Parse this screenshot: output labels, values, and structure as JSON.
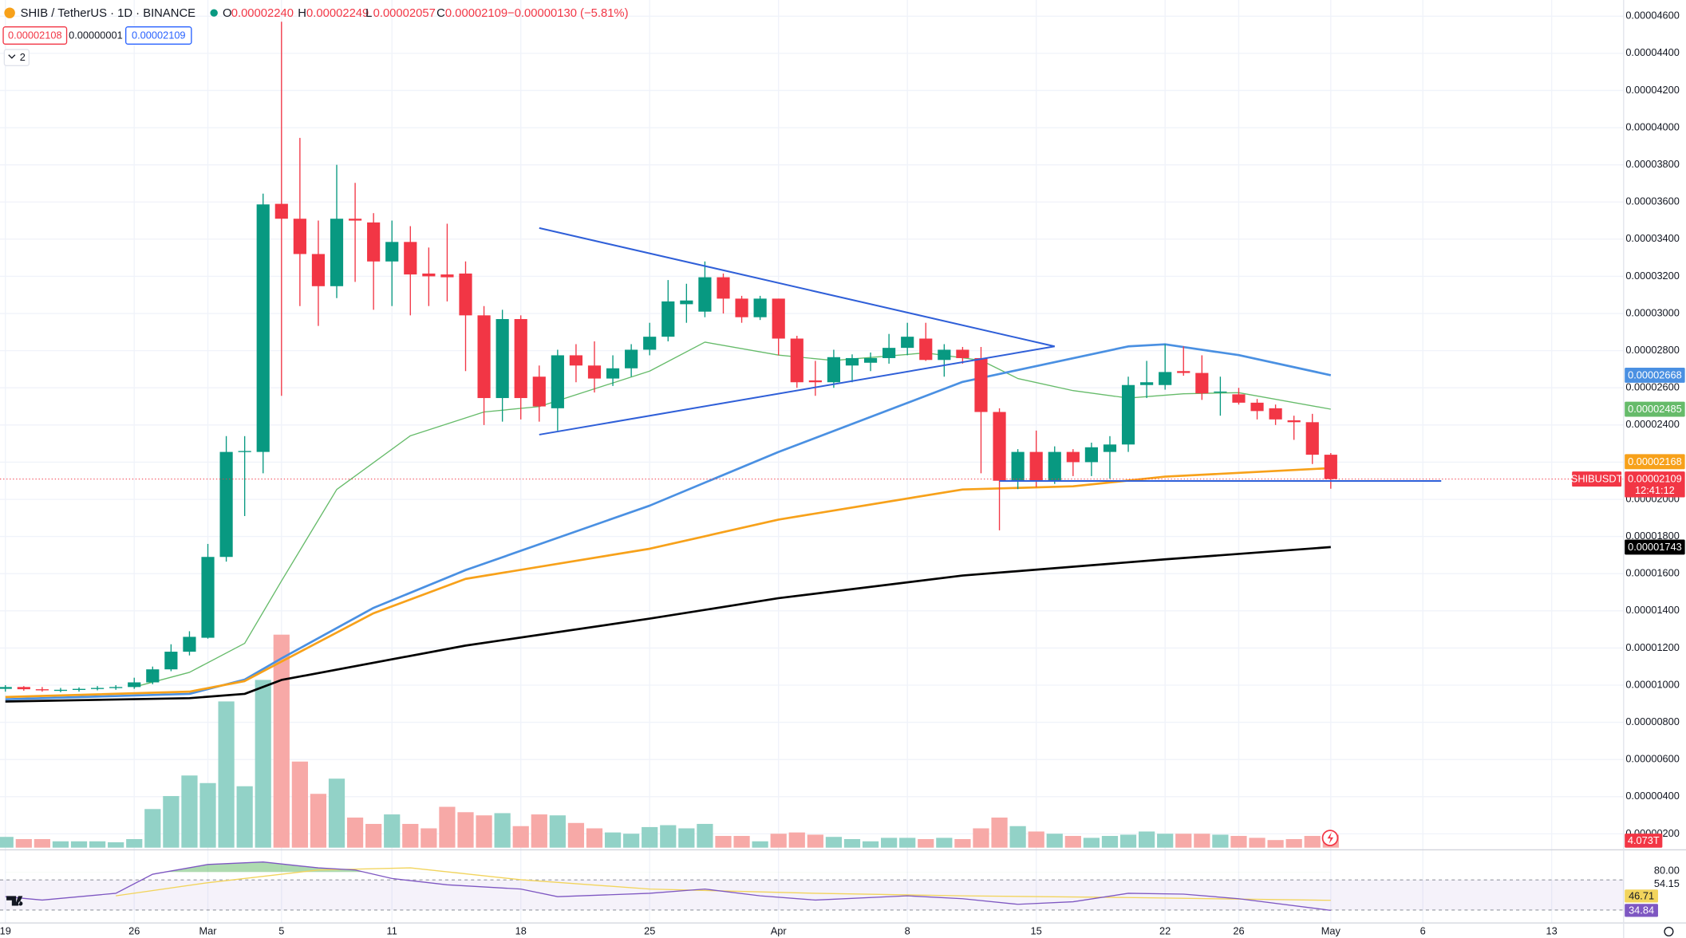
{
  "chart_data": {
    "type": "candlestick",
    "title": "SHIB / TetherUS · 1D · BINANCE",
    "ohlc": [
      {
        "label": "O",
        "value": "0.00002240"
      },
      {
        "label": "H",
        "value": "0.00002249"
      },
      {
        "label": "L",
        "value": "0.00002057"
      },
      {
        "label": "C",
        "value": "0.00002109"
      }
    ],
    "change": "−0.00000130 (−5.81%)",
    "sell_price": "0.00002108",
    "spread": "0.00000001",
    "buy_price": "0.00002109",
    "indicator_count": "2",
    "symbol": "SHIBUSDT",
    "countdown": "12:41:12",
    "colors": {
      "up": "#089981",
      "down": "#f23645",
      "up_volume": "#92d2c7",
      "down_volume": "#f7a9a7"
    },
    "x": [
      "Feb 19",
      "Feb 20",
      "Feb 21",
      "Feb 22",
      "Feb 23",
      "Feb 24",
      "Feb 25",
      "Feb 26",
      "Feb 27",
      "Feb 28",
      "Feb 29",
      "Mar 1",
      "Mar 2",
      "Mar 3",
      "Mar 4",
      "Mar 5",
      "Mar 6",
      "Mar 7",
      "Mar 8",
      "Mar 9",
      "Mar 10",
      "Mar 11",
      "Mar 12",
      "Mar 13",
      "Mar 14",
      "Mar 15",
      "Mar 16",
      "Mar 17",
      "Mar 18",
      "Mar 19",
      "Mar 20",
      "Mar 21",
      "Mar 22",
      "Mar 23",
      "Mar 24",
      "Mar 25",
      "Mar 26",
      "Mar 27",
      "Mar 28",
      "Mar 29",
      "Mar 30",
      "Mar 31",
      "Apr 1",
      "Apr 2",
      "Apr 3",
      "Apr 4",
      "Apr 5",
      "Apr 6",
      "Apr 7",
      "Apr 8",
      "Apr 9",
      "Apr 10",
      "Apr 11",
      "Apr 12",
      "Apr 13",
      "Apr 14",
      "Apr 15",
      "Apr 16",
      "Apr 17",
      "Apr 18",
      "Apr 19",
      "Apr 20",
      "Apr 21",
      "Apr 22",
      "Apr 23",
      "Apr 24",
      "Apr 25",
      "Apr 26",
      "Apr 27",
      "Apr 28",
      "Apr 29",
      "Apr 30",
      "May 1"
    ],
    "open": [
      9.8e-06,
      9.9e-06,
      9.78e-06,
      9.72e-06,
      9.75e-06,
      9.8e-06,
      9.85e-06,
      9.9e-06,
      1.015e-05,
      1.085e-05,
      1.18e-05,
      1.255e-05,
      1.69e-05,
      2.255e-05,
      2.255e-05,
      3.59e-05,
      3.51e-05,
      3.32e-05,
      3.147e-05,
      3.51e-05,
      3.49e-05,
      3.28e-05,
      3.385e-05,
      3.215e-05,
      3.21e-05,
      3.215e-05,
      2.99e-05,
      2.545e-05,
      2.97e-05,
      2.66e-05,
      2.49e-05,
      2.775e-05,
      2.72e-05,
      2.65e-05,
      2.705e-05,
      2.805e-05,
      2.875e-05,
      3.05e-05,
      3.01e-05,
      3.195e-05,
      3.08e-05,
      2.98e-05,
      3.08e-05,
      2.865e-05,
      2.64e-05,
      2.63e-05,
      2.72e-05,
      2.735e-05,
      2.76e-05,
      2.815e-05,
      2.865e-05,
      2.75e-05,
      2.805e-05,
      2.76e-05,
      2.47e-05,
      2.1e-05,
      2.255e-05,
      2.1e-05,
      2.255e-05,
      2.2e-05,
      2.255e-05,
      2.295e-05,
      2.615e-05,
      2.615e-05,
      2.69e-05,
      2.68e-05,
      2.575e-05,
      2.565e-05,
      2.52e-05,
      2.49e-05,
      2.425e-05,
      2.415e-05,
      2.24e-05
    ],
    "high": [
      1e-05,
      9.95e-06,
      9.9e-06,
      9.85e-06,
      9.88e-06,
      9.95e-06,
      1e-05,
      1.04e-05,
      1.1e-05,
      1.22e-05,
      1.29e-05,
      1.76e-05,
      2.34e-05,
      2.34e-05,
      3.645e-05,
      4.57e-05,
      3.945e-05,
      3.5e-05,
      3.8e-05,
      3.703e-05,
      3.54e-05,
      3.5e-05,
      3.47e-05,
      3.355e-05,
      3.483e-05,
      3.28e-05,
      3.04e-05,
      3.02e-05,
      2.99e-05,
      2.72e-05,
      2.805e-05,
      2.835e-05,
      2.85e-05,
      2.775e-05,
      2.835e-05,
      2.95e-05,
      3.18e-05,
      3.16e-05,
      3.28e-05,
      3.215e-05,
      3.095e-05,
      3.095e-05,
      3.08e-05,
      2.88e-05,
      2.745e-05,
      2.805e-05,
      2.78e-05,
      2.79e-05,
      2.89e-05,
      2.95e-05,
      2.95e-05,
      2.835e-05,
      2.82e-05,
      2.82e-05,
      2.49e-05,
      2.27e-05,
      2.37e-05,
      2.285e-05,
      2.27e-05,
      2.305e-05,
      2.34e-05,
      2.66e-05,
      2.745e-05,
      2.835e-05,
      2.823e-05,
      2.775e-05,
      2.66e-05,
      2.6e-05,
      2.54e-05,
      2.51e-05,
      2.45e-05,
      2.46e-05,
      2.249e-05
    ],
    "low": [
      9.65e-06,
      9.7e-06,
      9.65e-06,
      9.62e-06,
      9.65e-06,
      9.72e-06,
      9.75e-06,
      9.8e-06,
      1.005e-05,
      1.075e-05,
      1.16e-05,
      1.25e-05,
      1.665e-05,
      1.91e-05,
      2.14e-05,
      2.557e-05,
      3.04e-05,
      2.933e-05,
      3.083e-05,
      3.17e-05,
      3.02e-05,
      3.04e-05,
      2.99e-05,
      3.04e-05,
      3.065e-05,
      2.69e-05,
      2.4e-05,
      2.418e-05,
      2.43e-05,
      2.418e-05,
      2.37e-05,
      2.63e-05,
      2.575e-05,
      2.61e-05,
      2.66e-05,
      2.775e-05,
      2.85e-05,
      2.95e-05,
      2.98e-05,
      3e-05,
      2.95e-05,
      2.965e-05,
      2.775e-05,
      2.6e-05,
      2.557e-05,
      2.6e-05,
      2.63e-05,
      2.69e-05,
      2.73e-05,
      2.775e-05,
      2.745e-05,
      2.66e-05,
      2.73e-05,
      2.14e-05,
      1.833e-05,
      2.055e-05,
      2.065e-05,
      2.083e-05,
      2.125e-05,
      2.125e-05,
      2.112e-05,
      2.255e-05,
      2.545e-05,
      2.59e-05,
      2.665e-05,
      2.535e-05,
      2.45e-05,
      2.51e-05,
      2.43e-05,
      2.4e-05,
      2.32e-05,
      2.19e-05,
      2.057e-05
    ],
    "close": [
      9.9e-06,
      9.78e-06,
      9.72e-06,
      9.75e-06,
      9.8e-06,
      9.85e-06,
      9.9e-06,
      1.015e-05,
      1.085e-05,
      1.18e-05,
      1.26e-05,
      1.69e-05,
      2.255e-05,
      2.26e-05,
      3.587e-05,
      3.51e-05,
      3.32e-05,
      3.147e-05,
      3.51e-05,
      3.5e-05,
      3.28e-05,
      3.385e-05,
      3.21e-05,
      3.2e-05,
      3.195e-05,
      2.99e-05,
      2.545e-05,
      2.97e-05,
      2.545e-05,
      2.5e-05,
      2.775e-05,
      2.72e-05,
      2.65e-05,
      2.705e-05,
      2.805e-05,
      2.875e-05,
      3.065e-05,
      3.07e-05,
      3.195e-05,
      3.08e-05,
      2.98e-05,
      3.08e-05,
      2.865e-05,
      2.63e-05,
      2.63e-05,
      2.765e-05,
      2.76e-05,
      2.76e-05,
      2.815e-05,
      2.875e-05,
      2.75e-05,
      2.805e-05,
      2.76e-05,
      2.47e-05,
      2.1e-05,
      2.255e-05,
      2.1e-05,
      2.255e-05,
      2.2e-05,
      2.28e-05,
      2.295e-05,
      2.615e-05,
      2.63e-05,
      2.685e-05,
      2.68e-05,
      2.57e-05,
      2.58e-05,
      2.52e-05,
      2.475e-05,
      2.43e-05,
      2.415e-05,
      2.24e-05,
      2.109e-05
    ],
    "volume": {
      "values": [
        3.4,
        2.7,
        2.7,
        2.0,
        2.0,
        2.0,
        1.7,
        2.7,
        12.2,
        16.3,
        22.8,
        20.4,
        46.2,
        19.4,
        53.0,
        67.3,
        27.2,
        17.0,
        21.8,
        9.5,
        7.5,
        10.5,
        7.5,
        6.1,
        12.9,
        11.2,
        10.2,
        10.9,
        6.8,
        10.5,
        10.2,
        7.8,
        6.1,
        4.8,
        4.4,
        6.5,
        7.1,
        6.1,
        7.5,
        3.7,
        3.7,
        2.0,
        4.4,
        4.8,
        4.1,
        3.4,
        2.7,
        2.0,
        3.1,
        3.1,
        2.7,
        3.1,
        2.7,
        6.1,
        9.5,
        6.8,
        5.1,
        4.4,
        3.7,
        3.1,
        3.7,
        4.1,
        5.1,
        4.4,
        4.4,
        4.4,
        4.1,
        3.7,
        3.1,
        2.4,
        2.7,
        3.7,
        4.073
      ],
      "last_label": "4.073T"
    },
    "ma": [
      {
        "color": "#66bb6a",
        "x": [
          "Feb 26",
          "Feb 29",
          "Mar 3",
          "Mar 5",
          "Mar 8",
          "Mar 12",
          "Mar 16",
          "Mar 19",
          "Mar 25",
          "Mar 28",
          "Apr 1",
          "Apr 4",
          "Apr 9",
          "Apr 12",
          "Apr 14",
          "Apr 17",
          "Apr 20",
          "Apr 23",
          "Apr 26",
          "May 1"
        ],
        "values": [
          9.9e-06,
          1.069e-05,
          1.225e-05,
          1.561e-05,
          2.053e-05,
          2.342e-05,
          2.47e-05,
          2.499e-05,
          2.69e-05,
          2.846e-05,
          2.776e-05,
          2.747e-05,
          2.788e-05,
          2.748e-05,
          2.65e-05,
          2.585e-05,
          2.545e-05,
          2.568e-05,
          2.574e-05,
          2.485e-05
        ]
      },
      {
        "color": "#4a90e2",
        "x": [
          "Feb 19",
          "Feb 29",
          "Mar 3",
          "Mar 5",
          "Mar 10",
          "Mar 15",
          "Mar 25",
          "Apr 1",
          "Apr 11",
          "Apr 20",
          "Apr 22",
          "Apr 26",
          "May 1"
        ],
        "values": [
          9.24e-06,
          9.53e-06,
          1.03e-05,
          1.144e-05,
          1.416e-05,
          1.619e-05,
          1.966e-05,
          2.255e-05,
          2.632e-05,
          2.823e-05,
          2.834e-05,
          2.776e-05,
          2.668e-05
        ]
      },
      {
        "color": "#f7a11a",
        "x": [
          "Feb 19",
          "Feb 29",
          "Mar 3",
          "Mar 5",
          "Mar 10",
          "Mar 15",
          "Mar 25",
          "Apr 1",
          "Apr 11",
          "Apr 17",
          "Apr 22",
          "May 1"
        ],
        "values": [
          9.36e-06,
          9.65e-06,
          1.022e-05,
          1.127e-05,
          1.387e-05,
          1.572e-05,
          1.734e-05,
          1.891e-05,
          2.053e-05,
          2.07e-05,
          2.122e-05,
          2.168e-05
        ]
      },
      {
        "color": "#000000",
        "x": [
          "Feb 19",
          "Feb 29",
          "Mar 3",
          "Mar 5",
          "Mar 15",
          "Mar 25",
          "Apr 1",
          "Apr 11",
          "Apr 22",
          "May 1"
        ],
        "values": [
          9.12e-06,
          9.3e-06,
          9.53e-06,
          1.028e-05,
          1.213e-05,
          1.358e-05,
          1.468e-05,
          1.59e-05,
          1.677e-05,
          1.743e-05
        ]
      }
    ],
    "drawings": [
      {
        "color": "#2f5fd8",
        "from": [
          "Mar 19",
          3.46e-05
        ],
        "to": [
          "Apr 16",
          2.823e-05
        ]
      },
      {
        "color": "#2f5fd8",
        "from": [
          "Mar 19",
          2.348e-05
        ],
        "to": [
          "Apr 16",
          2.823e-05
        ]
      },
      {
        "color": "#2f5fd8",
        "from": [
          "Apr 13",
          2.099e-05
        ],
        "to": [
          "May 7",
          2.099e-05
        ]
      }
    ],
    "ylim": [
      1.14e-06,
      4.687e-05
    ],
    "yticks": [
      {
        "value": 4.6e-05,
        "label": "0.00004600"
      },
      {
        "value": 4.4e-05,
        "label": "0.00004400"
      },
      {
        "value": 4.2e-05,
        "label": "0.00004200"
      },
      {
        "value": 4e-05,
        "label": "0.00004000"
      },
      {
        "value": 3.8e-05,
        "label": "0.00003800"
      },
      {
        "value": 3.6e-05,
        "label": "0.00003600"
      },
      {
        "value": 3.4e-05,
        "label": "0.00003400"
      },
      {
        "value": 3.2e-05,
        "label": "0.00003200"
      },
      {
        "value": 3e-05,
        "label": "0.00003000"
      },
      {
        "value": 2.8e-05,
        "label": "0.00002800"
      },
      {
        "value": 2.6e-05,
        "label": "0.00002600"
      },
      {
        "value": 2.4e-05,
        "label": "0.00002400"
      },
      {
        "value": 2.2e-05,
        "label": "0.00002200"
      },
      {
        "value": 2e-05,
        "label": "0.00002000"
      },
      {
        "value": 1.8e-05,
        "label": "0.00001800"
      },
      {
        "value": 1.6e-05,
        "label": "0.00001600"
      },
      {
        "value": 1.4e-05,
        "label": "0.00001400"
      },
      {
        "value": 1.2e-05,
        "label": "0.00001200"
      },
      {
        "value": 1e-05,
        "label": "0.00001000"
      },
      {
        "value": 8e-06,
        "label": "0.00000800"
      },
      {
        "value": 6e-06,
        "label": "0.00000600"
      },
      {
        "value": 4e-06,
        "label": "0.00000400"
      },
      {
        "value": 2e-06,
        "label": "0.00000200"
      }
    ],
    "xticks": [
      {
        "value": "Feb 19",
        "label": "19"
      },
      {
        "value": "Feb 26",
        "label": "26"
      },
      {
        "value": "Mar 1",
        "label": "Mar"
      },
      {
        "value": "Mar 5",
        "label": "5"
      },
      {
        "value": "Mar 11",
        "label": "11"
      },
      {
        "value": "Mar 18",
        "label": "18"
      },
      {
        "value": "Mar 25",
        "label": "25"
      },
      {
        "value": "Apr 1",
        "label": "Apr"
      },
      {
        "value": "Apr 8",
        "label": "8"
      },
      {
        "value": "Apr 15",
        "label": "15"
      },
      {
        "value": "Apr 22",
        "label": "22"
      },
      {
        "value": "Apr 26",
        "label": "26"
      },
      {
        "value": "May 1",
        "label": "May"
      },
      {
        "value": "May 6",
        "label": "6"
      },
      {
        "value": "May 13",
        "label": "13"
      }
    ],
    "grid": true,
    "rsi": {
      "ylim": [
        20,
        100
      ],
      "yticks": [
        {
          "value": 80,
          "label": "80.00"
        },
        {
          "value": 54.15,
          "label": "54.15"
        }
      ],
      "line": {
        "color": "#7e57c2",
        "x": [
          "Feb 19",
          "Feb 21",
          "Feb 25",
          "Feb 27",
          "Mar 1",
          "Mar 4",
          "Mar 7",
          "Mar 9",
          "Mar 11",
          "Mar 14",
          "Mar 18",
          "Mar 20",
          "Mar 25",
          "Mar 28",
          "Mar 31",
          "Apr 3",
          "Apr 8",
          "Apr 11",
          "Apr 14",
          "Apr 17",
          "Apr 20",
          "Apr 23",
          "Apr 26",
          "May 1"
        ],
        "values": [
          51,
          47,
          55,
          77.5,
          89,
          92,
          85,
          82.5,
          72.5,
          65,
          60,
          51,
          55,
          60,
          52,
          47,
          52,
          48.6,
          42,
          45,
          55,
          54,
          48.6,
          34.84
        ]
      },
      "ma": {
        "color": "#f2d45c",
        "x": [
          "Feb 25",
          "Mar 1",
          "Mar 7",
          "Mar 12",
          "Mar 18",
          "Mar 25",
          "Apr 3",
          "Apr 11",
          "Apr 20",
          "May 1"
        ],
        "values": [
          52,
          67.5,
          82.5,
          85,
          71,
          60,
          55,
          52,
          50,
          46.71
        ]
      },
      "overbought_fill": "#4caf50"
    }
  }
}
